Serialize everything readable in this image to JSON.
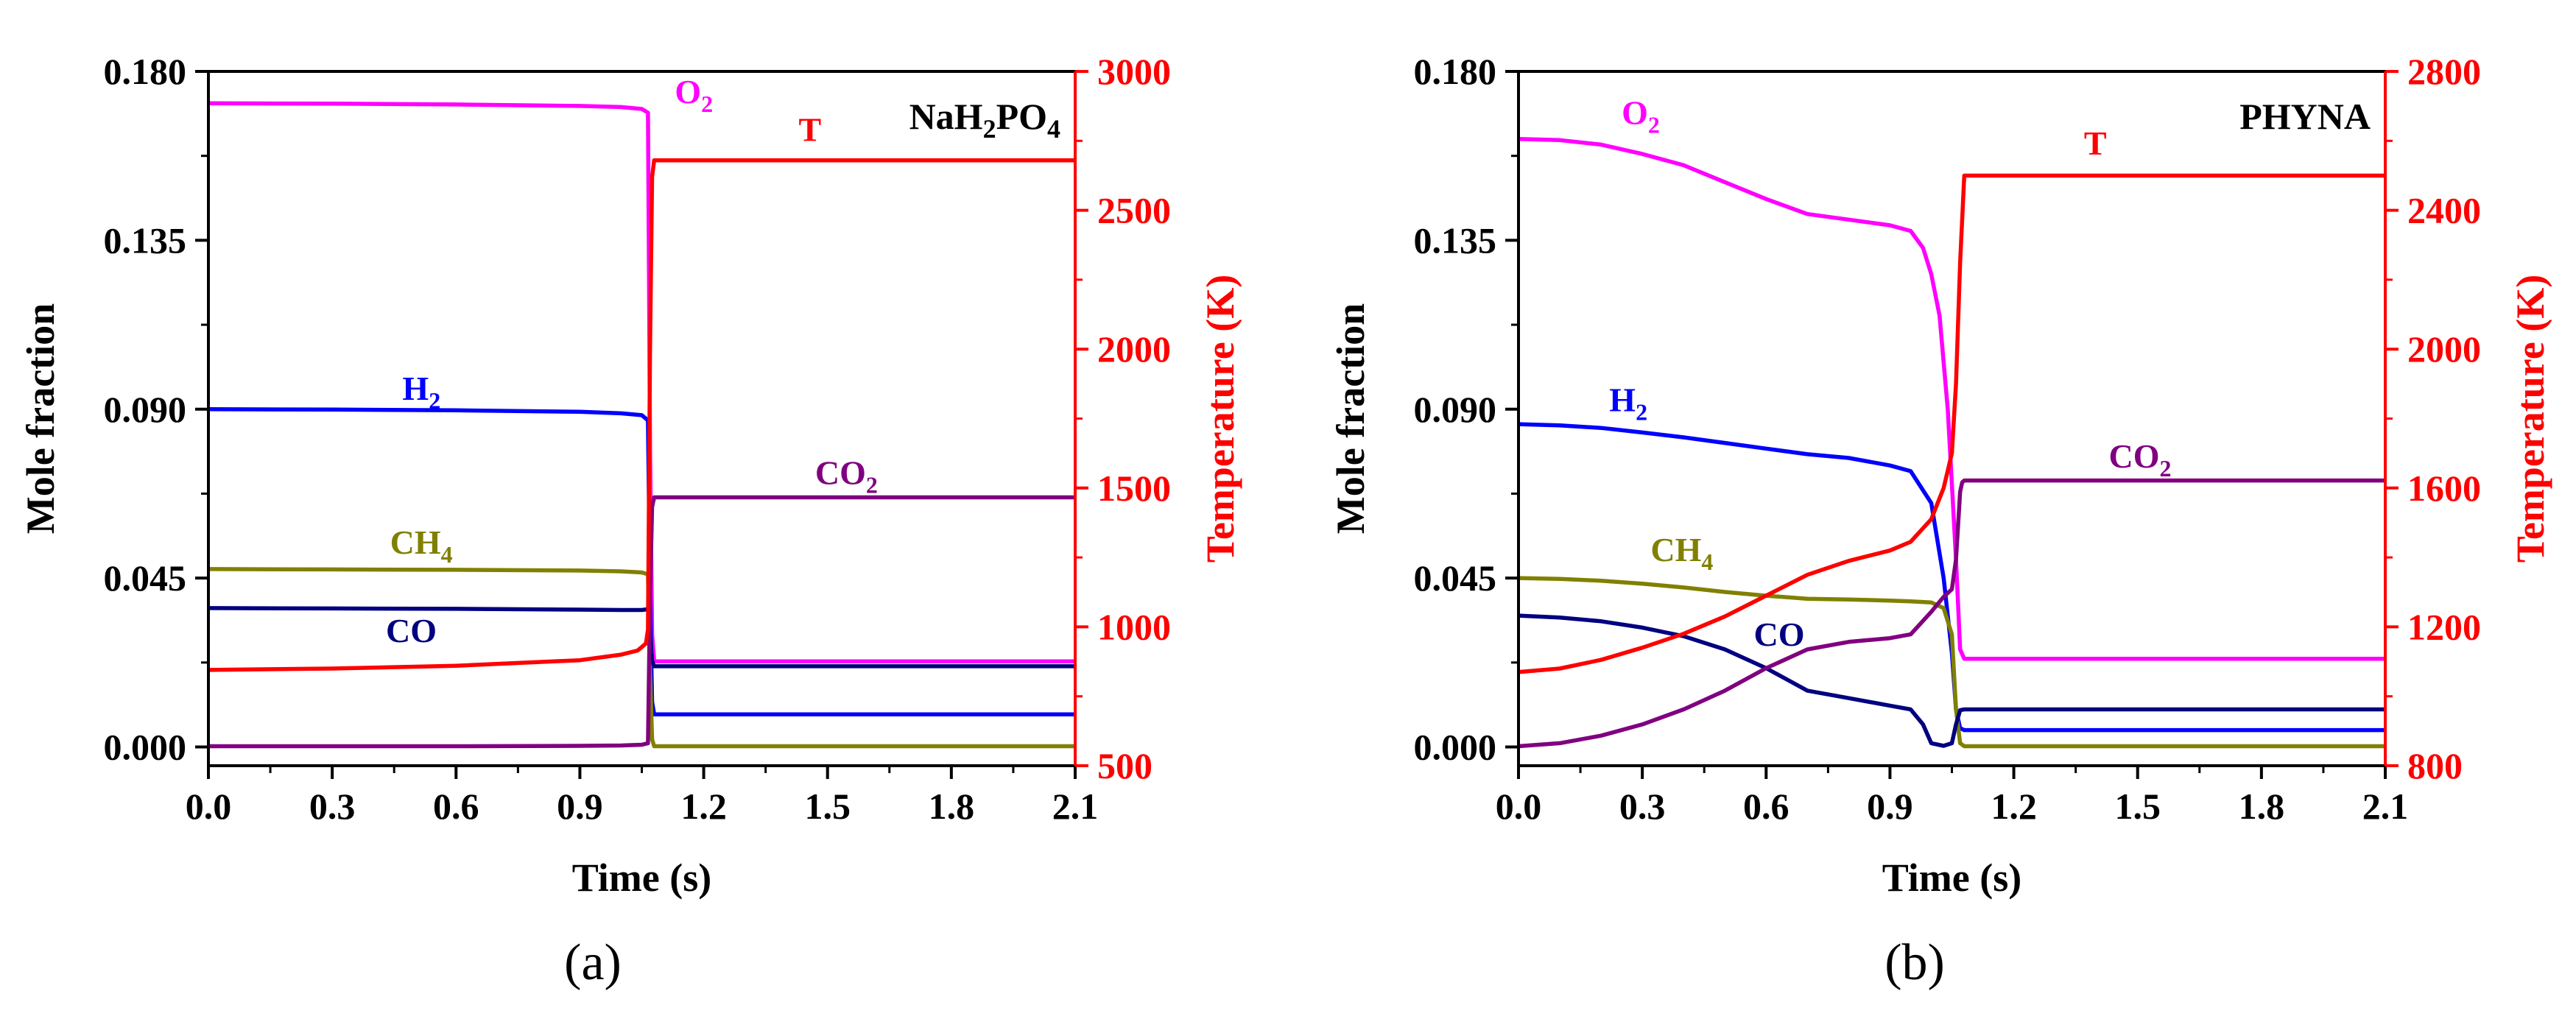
{
  "chart_data": [
    {
      "type": "line",
      "panel_label": "(a)",
      "title_parts": [
        {
          "text": "NaH",
          "sub": false
        },
        {
          "text": "2",
          "sub": true
        },
        {
          "text": "PO",
          "sub": false
        },
        {
          "text": "4",
          "sub": true
        }
      ],
      "xlabel": "Time (s)",
      "ylabel": "Mole fraction",
      "y2label": "Temperature (K)",
      "xlim": [
        0,
        2.1
      ],
      "ylim": [
        -0.005,
        0.18
      ],
      "y2lim": [
        500,
        3000
      ],
      "xticks": [
        "0.0",
        "0.3",
        "0.6",
        "0.9",
        "1.2",
        "1.5",
        "1.8",
        "2.1"
      ],
      "yticks": [
        "0.000",
        "0.045",
        "0.090",
        "0.135",
        "0.180"
      ],
      "y2ticks": [
        "500",
        "1000",
        "1500",
        "2000",
        "2500",
        "3000"
      ],
      "series": [
        {
          "name": "O2",
          "label": "O",
          "label_sub": "2",
          "color": "#ff00ff",
          "axis": "left",
          "x": [
            0,
            0.3,
            0.6,
            0.9,
            1.0,
            1.05,
            1.065,
            1.07,
            1.075,
            1.08,
            2.1
          ],
          "y": [
            0.1715,
            0.1714,
            0.1712,
            0.1708,
            0.1705,
            0.17,
            0.169,
            0.08,
            0.03,
            0.0228,
            0.0228
          ],
          "label_at": [
            1.13,
            0.1716
          ]
        },
        {
          "name": "H2",
          "label": "H",
          "label_sub": "2",
          "color": "#0000ff",
          "axis": "left",
          "x": [
            0,
            0.3,
            0.6,
            0.9,
            1.0,
            1.05,
            1.065,
            1.07,
            1.075,
            1.08,
            2.1
          ],
          "y": [
            0.09,
            0.0899,
            0.0897,
            0.0893,
            0.0889,
            0.0884,
            0.087,
            0.04,
            0.012,
            0.0087,
            0.0087
          ],
          "label_at": [
            0.47,
            0.0925
          ]
        },
        {
          "name": "CH4",
          "label": "CH",
          "label_sub": "4",
          "color": "#808000",
          "axis": "left",
          "x": [
            0,
            0.3,
            0.6,
            0.9,
            1.0,
            1.05,
            1.065,
            1.07,
            1.075,
            1.08,
            2.1
          ],
          "y": [
            0.0474,
            0.0473,
            0.0472,
            0.047,
            0.0468,
            0.0465,
            0.046,
            0.02,
            0.002,
            0.0002,
            0.0002
          ],
          "label_at": [
            0.44,
            0.0515
          ]
        },
        {
          "name": "CO",
          "label": "CO",
          "label_sub": "",
          "color": "#000080",
          "axis": "left",
          "x": [
            0,
            0.3,
            0.6,
            0.9,
            1.0,
            1.05,
            1.065,
            1.07,
            1.075,
            1.08,
            2.1
          ],
          "y": [
            0.037,
            0.0369,
            0.0368,
            0.0366,
            0.0365,
            0.0365,
            0.0367,
            0.03,
            0.023,
            0.0215,
            0.0215
          ],
          "label_at": [
            0.43,
            0.028
          ]
        },
        {
          "name": "CO2",
          "label": "CO",
          "label_sub": "2",
          "color": "#800080",
          "axis": "left",
          "x": [
            0,
            0.3,
            0.6,
            0.9,
            1.0,
            1.05,
            1.065,
            1.07,
            1.075,
            1.08,
            2.1
          ],
          "y": [
            0.0002,
            0.0002,
            0.0002,
            0.0003,
            0.0004,
            0.0006,
            0.001,
            0.04,
            0.064,
            0.0665,
            0.0665
          ],
          "label_at": [
            1.47,
            0.07
          ]
        },
        {
          "name": "T",
          "label": "T",
          "label_sub": "",
          "color": "#ff0000",
          "axis": "right",
          "x": [
            0,
            0.3,
            0.6,
            0.9,
            1.0,
            1.04,
            1.06,
            1.065,
            1.07,
            1.075,
            1.08,
            2.1
          ],
          "y": [
            845,
            850,
            860,
            880,
            900,
            915,
            940,
            990,
            2000,
            2620,
            2680,
            2680
          ],
          "label_at": [
            1.43,
            2750
          ]
        }
      ]
    },
    {
      "type": "line",
      "panel_label": "(b)",
      "title_parts": [
        {
          "text": "PHYNA",
          "sub": false
        }
      ],
      "xlabel": "Time (s)",
      "ylabel": "Mole fraction",
      "y2label": "Temperature (K)",
      "xlim": [
        0,
        2.1
      ],
      "ylim": [
        -0.005,
        0.18
      ],
      "y2lim": [
        800,
        2800
      ],
      "xticks": [
        "0.0",
        "0.3",
        "0.6",
        "0.9",
        "1.2",
        "1.5",
        "1.8",
        "2.1"
      ],
      "yticks": [
        "0.000",
        "0.045",
        "0.090",
        "0.135",
        "0.180"
      ],
      "y2ticks": [
        "800",
        "1200",
        "1600",
        "2000",
        "2400",
        "2800"
      ],
      "series": [
        {
          "name": "O2",
          "label": "O",
          "label_sub": "2",
          "color": "#ff00ff",
          "axis": "left",
          "x": [
            0,
            0.1,
            0.2,
            0.3,
            0.4,
            0.5,
            0.6,
            0.7,
            0.8,
            0.9,
            0.95,
            0.98,
            1.0,
            1.02,
            1.04,
            1.06,
            1.07,
            1.08,
            2.1
          ],
          "y": [
            0.162,
            0.1617,
            0.1605,
            0.158,
            0.155,
            0.1505,
            0.146,
            0.142,
            0.1405,
            0.139,
            0.1375,
            0.133,
            0.126,
            0.115,
            0.09,
            0.05,
            0.026,
            0.0235,
            0.0235
          ],
          "label_at": [
            0.25,
            0.166
          ]
        },
        {
          "name": "H2",
          "label": "H",
          "label_sub": "2",
          "color": "#0000ff",
          "axis": "left",
          "x": [
            0,
            0.1,
            0.2,
            0.3,
            0.4,
            0.5,
            0.6,
            0.7,
            0.8,
            0.9,
            0.95,
            1.0,
            1.03,
            1.05,
            1.06,
            1.07,
            1.08,
            2.1
          ],
          "y": [
            0.086,
            0.0857,
            0.085,
            0.0838,
            0.0825,
            0.081,
            0.0795,
            0.078,
            0.077,
            0.075,
            0.0735,
            0.065,
            0.045,
            0.025,
            0.01,
            0.005,
            0.0045,
            0.0045
          ],
          "label_at": [
            0.22,
            0.0895
          ]
        },
        {
          "name": "CH4",
          "label": "CH",
          "label_sub": "4",
          "color": "#808000",
          "axis": "left",
          "x": [
            0,
            0.1,
            0.2,
            0.3,
            0.4,
            0.5,
            0.6,
            0.7,
            0.8,
            0.9,
            0.95,
            1.0,
            1.03,
            1.05,
            1.06,
            1.07,
            1.08,
            2.1
          ],
          "y": [
            0.045,
            0.0448,
            0.0443,
            0.0435,
            0.0425,
            0.0413,
            0.0403,
            0.0395,
            0.0393,
            0.039,
            0.0388,
            0.0385,
            0.037,
            0.03,
            0.01,
            0.001,
            0.0002,
            0.0002
          ],
          "label_at": [
            0.32,
            0.0495
          ]
        },
        {
          "name": "CO",
          "label": "CO",
          "label_sub": "",
          "color": "#000080",
          "axis": "left",
          "x": [
            0,
            0.1,
            0.2,
            0.3,
            0.4,
            0.5,
            0.6,
            0.7,
            0.8,
            0.9,
            0.95,
            0.98,
            1.0,
            1.03,
            1.05,
            1.06,
            1.07,
            1.08,
            2.1
          ],
          "y": [
            0.035,
            0.0345,
            0.0335,
            0.0318,
            0.0295,
            0.026,
            0.021,
            0.015,
            0.013,
            0.011,
            0.01,
            0.006,
            0.001,
            0.0003,
            0.001,
            0.006,
            0.0098,
            0.01,
            0.01
          ],
          "label_at": [
            0.57,
            0.027
          ]
        },
        {
          "name": "CO2",
          "label": "CO",
          "label_sub": "2",
          "color": "#800080",
          "axis": "left",
          "x": [
            0,
            0.1,
            0.2,
            0.3,
            0.4,
            0.5,
            0.6,
            0.7,
            0.8,
            0.9,
            0.95,
            1.0,
            1.03,
            1.05,
            1.06,
            1.07,
            1.075,
            1.08,
            2.1
          ],
          "y": [
            0.0002,
            0.001,
            0.003,
            0.006,
            0.01,
            0.015,
            0.021,
            0.026,
            0.028,
            0.029,
            0.03,
            0.036,
            0.04,
            0.042,
            0.05,
            0.068,
            0.0705,
            0.071,
            0.071
          ],
          "label_at": [
            1.43,
            0.0745
          ]
        },
        {
          "name": "T",
          "label": "T",
          "label_sub": "",
          "color": "#ff0000",
          "axis": "right",
          "x": [
            0,
            0.1,
            0.2,
            0.3,
            0.4,
            0.5,
            0.6,
            0.7,
            0.8,
            0.9,
            0.95,
            1.0,
            1.03,
            1.05,
            1.06,
            1.07,
            1.08,
            2.1
          ],
          "y": [
            1070,
            1080,
            1105,
            1140,
            1180,
            1230,
            1290,
            1350,
            1390,
            1420,
            1445,
            1510,
            1600,
            1700,
            1900,
            2250,
            2500,
            2500
          ],
          "label_at": [
            1.37,
            2560
          ]
        }
      ]
    }
  ]
}
